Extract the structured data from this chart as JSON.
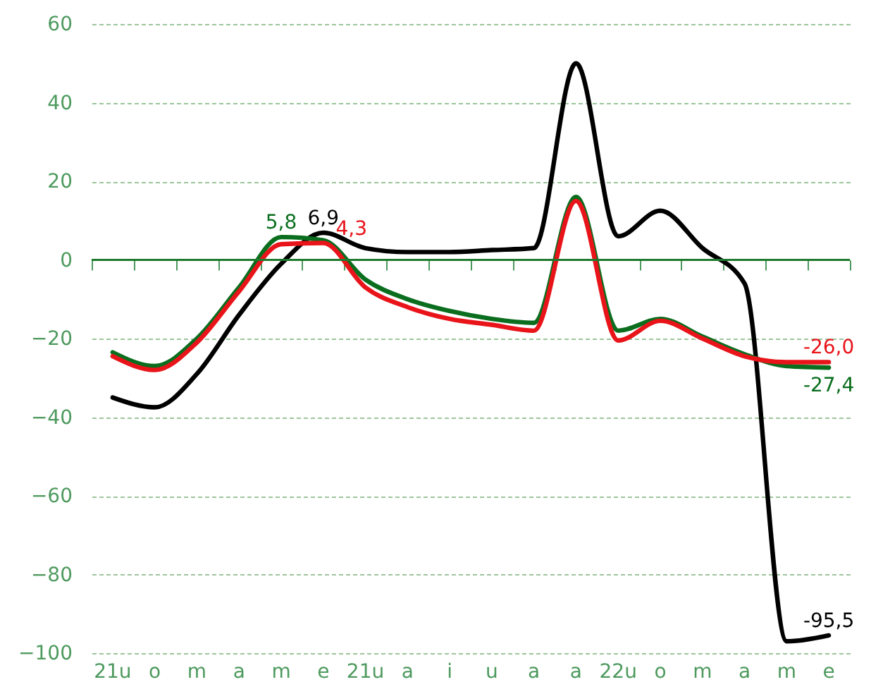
{
  "chart_data": {
    "type": "line",
    "categories": [
      "21u",
      "o",
      "m",
      "a",
      "m",
      "e",
      "21u",
      "a",
      "i",
      "u",
      "a",
      "a",
      "22u",
      "o",
      "m",
      "a",
      "m",
      "e"
    ],
    "series": [
      {
        "color": "#000000",
        "values": [
          -35,
          -37.5,
          -29,
          -14,
          -1,
          6.9,
          3,
          2,
          2,
          2.5,
          3,
          50,
          6,
          12.5,
          3,
          -6,
          -97,
          -95.5
        ],
        "value_labels": [
          null,
          null,
          null,
          null,
          null,
          "6,9",
          null,
          null,
          null,
          null,
          null,
          null,
          null,
          null,
          null,
          null,
          null,
          "-95,5"
        ]
      },
      {
        "color": "#0a6e1e",
        "values": [
          -23.5,
          -27,
          -20,
          -7,
          5.8,
          5,
          -5,
          -10,
          -13,
          -15,
          -16,
          16,
          -18,
          -15,
          -19.5,
          -24,
          -27,
          -27.4
        ],
        "value_labels": [
          null,
          null,
          null,
          null,
          "5,8",
          null,
          null,
          null,
          null,
          null,
          null,
          null,
          null,
          null,
          null,
          null,
          null,
          "-27,4"
        ]
      },
      {
        "color": "#e8141a",
        "values": [
          -24.5,
          -28,
          -21,
          -8,
          4,
          4.3,
          -7,
          -12,
          -15,
          -16.5,
          -18,
          15,
          -20.5,
          -15.5,
          -20,
          -24.5,
          -26,
          -26
        ],
        "value_labels": [
          null,
          null,
          null,
          null,
          null,
          "4,3",
          null,
          null,
          null,
          null,
          null,
          null,
          null,
          null,
          null,
          null,
          null,
          "-26,0"
        ]
      }
    ],
    "ylim": [
      -100,
      60
    ],
    "yticks": [
      -100,
      -80,
      -60,
      -40,
      -20,
      0,
      20,
      40,
      60
    ],
    "ref_lines": [
      {
        "axis": "y",
        "value": 0,
        "color": "#1f7a2e"
      }
    ],
    "grid": "y",
    "marker": "none",
    "line_style": "solid"
  }
}
